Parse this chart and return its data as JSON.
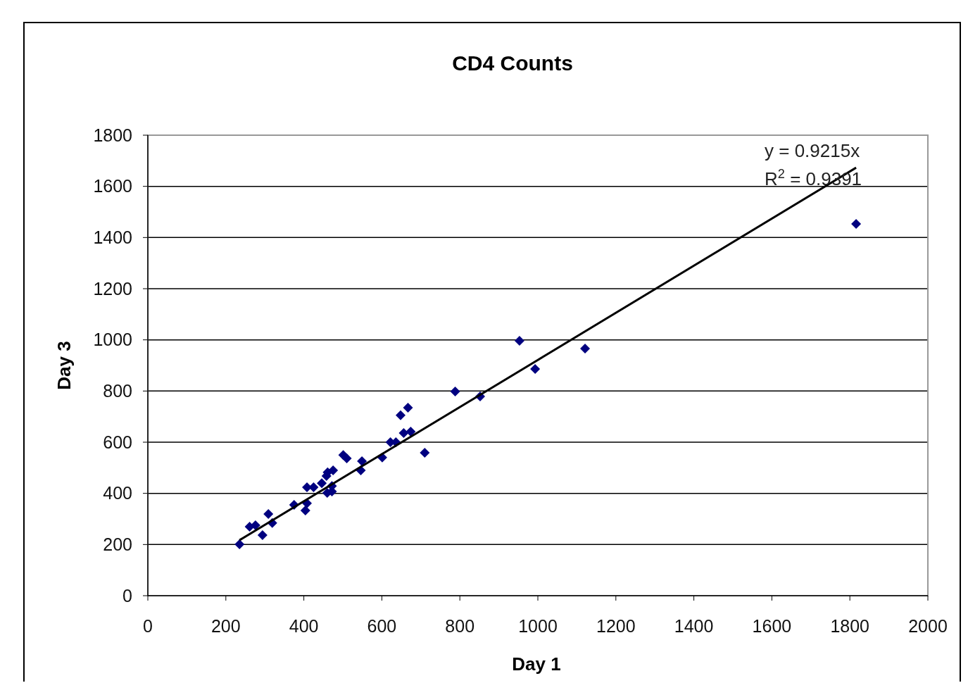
{
  "chart_data": {
    "type": "scatter",
    "title": "CD4 Counts",
    "xlabel": "Day 1",
    "ylabel": "Day 3",
    "series": [
      {
        "color": "#000080",
        "marker": "diamond",
        "x": [
          235,
          261,
          276,
          294,
          309,
          319,
          375,
          404,
          408,
          408,
          425,
          446,
          458,
          460,
          461,
          472,
          472,
          475,
          501,
          510,
          546,
          549,
          601,
          622,
          636,
          648,
          656,
          667,
          674,
          710,
          788,
          852,
          953,
          993,
          1121,
          1816
        ],
        "values": [
          201,
          270,
          275,
          237,
          319,
          284,
          355,
          333,
          361,
          424,
          424,
          440,
          468,
          402,
          482,
          407,
          429,
          490,
          550,
          537,
          490,
          526,
          540,
          600,
          600,
          705,
          636,
          735,
          641,
          559,
          798,
          779,
          996,
          886,
          966,
          1453
        ]
      },
      {
        "type": "line",
        "color": "#000000",
        "marker": "none",
        "line_style": "solid",
        "x": [
          235,
          1816
        ],
        "values": [
          217,
          1673
        ]
      }
    ],
    "annotations": [
      "y = 0.9215x",
      "R$^{2}$ = 0.9391"
    ],
    "xlim": [
      0,
      2000
    ],
    "xticks": [
      0,
      200,
      400,
      600,
      800,
      1000,
      1200,
      1400,
      1600,
      1800,
      2000
    ],
    "ylim": [
      0,
      1800
    ],
    "yticks": [
      0,
      200,
      400,
      600,
      800,
      1000,
      1200,
      1400,
      1600,
      1800
    ],
    "grid": "y"
  }
}
